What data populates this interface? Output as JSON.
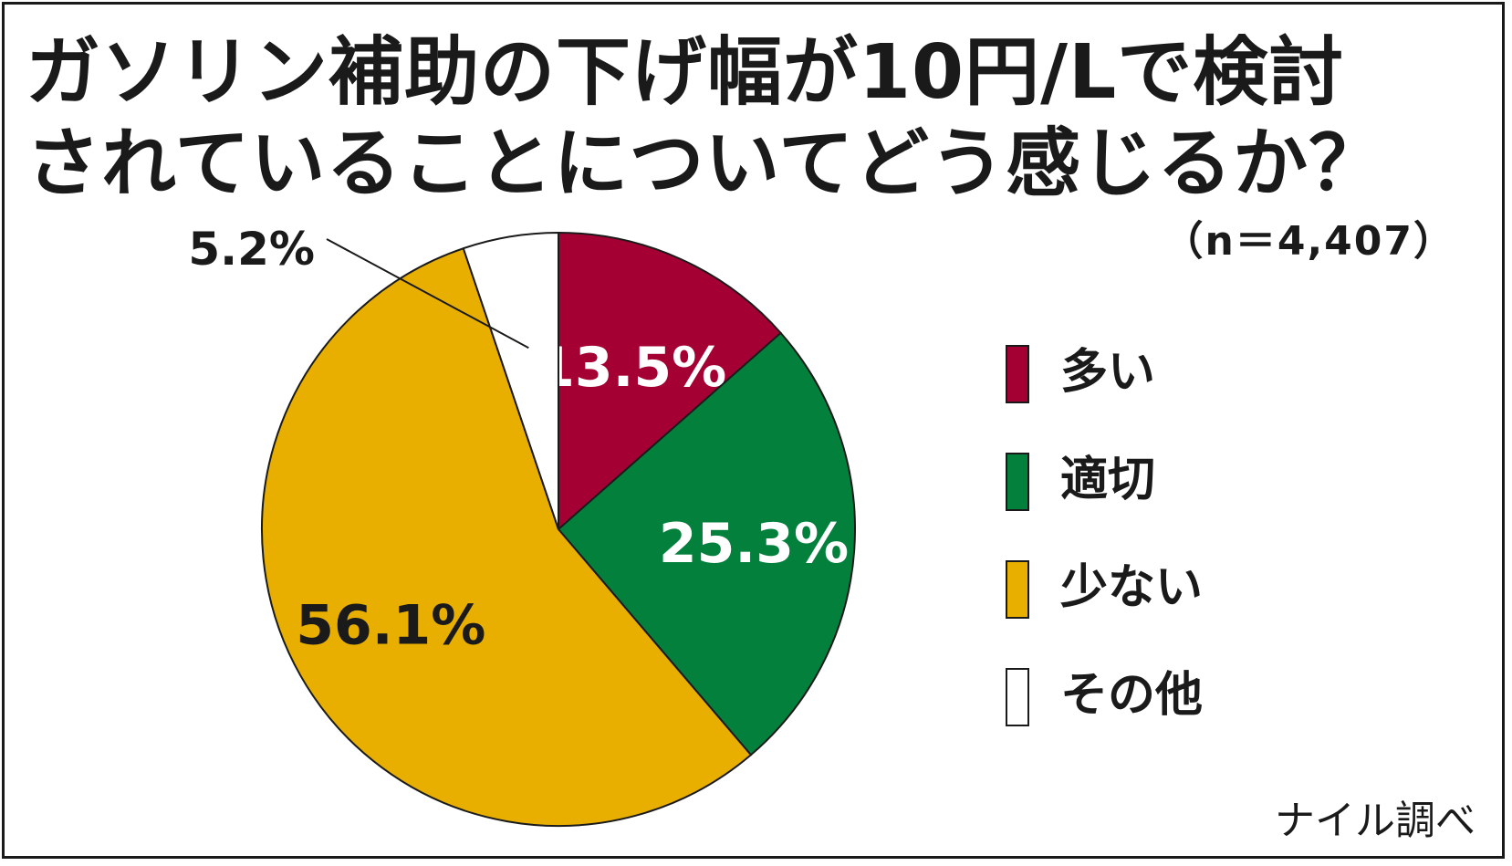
{
  "title": {
    "line1": "ガソリン補助の下げ幅が10円/Lで検討",
    "line2": "されていることについてどう感じるか？"
  },
  "sample_size": "（n＝4,407）",
  "source": "ナイル調べ",
  "chart_data": {
    "type": "pie",
    "title": "ガソリン補助の下げ幅が10円/Lで検討されていることについてどう感じるか？",
    "note": "（n＝4,407）",
    "start": "12 o'clock, clockwise",
    "categories": [
      "多い",
      "適切",
      "少ない",
      "その他"
    ],
    "values": [
      13.5,
      25.3,
      56.1,
      5.2
    ],
    "data_labels": [
      "13.5%",
      "25.3%",
      "56.1%",
      "5.2%"
    ],
    "colors": [
      "#a50034",
      "#04803d",
      "#e8af00",
      "#ffffff"
    ],
    "label_colors": [
      "#ffffff",
      "#ffffff",
      "#1a1a1a",
      "#1a1a1a"
    ],
    "legend": "right",
    "source": "ナイル調べ"
  }
}
